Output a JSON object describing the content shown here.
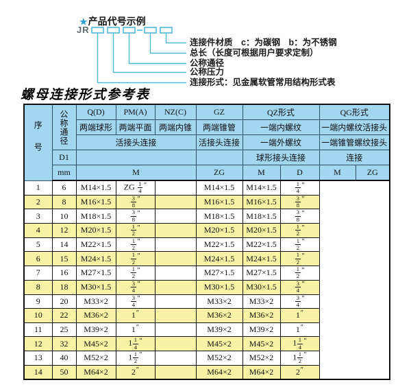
{
  "colors": {
    "accent_cyan": "#4cb9da",
    "star_blue": "#2aa3d8",
    "header_blue": "#a3d7f1",
    "row_yellow": "#f8f3a4"
  },
  "diagram": {
    "star": "★",
    "heading": "产品代号示例",
    "code_prefix": "JR",
    "labels": [
      "连接件材质　c：为碳钢　b：为不锈钢",
      "总长（长度可根据用户要求定制）",
      "公称通径",
      "公称压力",
      "连接形式：见金属软管常用结构形式表"
    ]
  },
  "table": {
    "title": "螺母连接形式参考表",
    "header": {
      "seq": "序号",
      "dn": "公称通径",
      "d1": "D1",
      "mm": "mm",
      "col_q": "Q(D)",
      "col_pm": "PM(A)",
      "col_nz": "NZ(C)",
      "col_gz": "GZ",
      "col_qz": "QZ形式",
      "col_qg": "QG形式",
      "q_desc": "两端球形",
      "pm_desc": "两端平面",
      "nz_desc": "两端内锥",
      "gz_desc": "两端锥管",
      "qz_desc1": "一端内螺纹",
      "qg_desc1": "一端内螺纹活接头",
      "left_conn": "活接头连接",
      "gz_conn": "活接头连接",
      "qz_desc2": "一端外螺纹",
      "qg_desc2": "一端锥管螺纹接头",
      "qz_conn": "球形接头连接",
      "qg_conn": "连接",
      "m1": "M",
      "zg1": "ZG",
      "m2": "M",
      "d2": "D",
      "m3": "M",
      "zg3": "ZG"
    },
    "rows": [
      {
        "no": "1",
        "dn": "6",
        "m": "M14×1.5",
        "gz": {
          "pre": "ZG ",
          "frac": "1/4",
          "unit": "″"
        },
        "qzm": "",
        "qzd": "M14×1.5",
        "qgm": "M14×1.5",
        "qgzg": {
          "frac": "1/4",
          "unit": "″"
        }
      },
      {
        "no": "2",
        "dn": "8",
        "m": "M16×1.5",
        "gz": {
          "frac": "3/8",
          "unit": "″"
        },
        "qzm": "",
        "qzd": "M16×1.5",
        "qgm": "M16×1.5",
        "qgzg": {
          "frac": "3/8",
          "unit": "″"
        }
      },
      {
        "no": "3",
        "dn": "10",
        "m": "M18×1.5",
        "gz": {
          "frac": "3/8",
          "unit": "″"
        },
        "qzm": "",
        "qzd": "M18×1.5",
        "qgm": "M18×1.5",
        "qgzg": {
          "frac": "3/8",
          "unit": "″"
        }
      },
      {
        "no": "4",
        "dn": "12",
        "m": "M20×1.5",
        "gz": {
          "frac": "1/2",
          "unit": "″"
        },
        "qzm": "",
        "qzd": "M20×1.5",
        "qgm": "M20×1.5",
        "qgzg": {
          "frac": "1/2",
          "unit": "″"
        }
      },
      {
        "no": "5",
        "dn": "14",
        "m": "M22×1.5",
        "gz": {
          "frac": "1/2",
          "unit": "″"
        },
        "qzm": "",
        "qzd": "M22×1.5",
        "qgm": "M22×1.5",
        "qgzg": {
          "frac": "1/2",
          "unit": "″"
        }
      },
      {
        "no": "6",
        "dn": "15",
        "m": "M24×1.5",
        "gz": {
          "frac": "1/2",
          "unit": "″"
        },
        "qzm": "",
        "qzd": "M24×1.5",
        "qgm": "M24×1.5",
        "qgzg": {
          "frac": "1/2",
          "unit": "″"
        }
      },
      {
        "no": "7",
        "dn": "16",
        "m": "M27×1.5",
        "gz": {
          "frac": "1/2",
          "unit": "″"
        },
        "qzm": "",
        "qzd": "M27×1.5",
        "qgm": "M27×1.5",
        "qgzg": {
          "frac": "1/2",
          "unit": "″"
        }
      },
      {
        "no": "8",
        "dn": "18",
        "m": "M30×1.5",
        "gz": {
          "frac": "3/4",
          "unit": "″"
        },
        "qzm": "",
        "qzd": "M30×1.5",
        "qgm": "M30×1.5",
        "qgzg": {
          "frac": "3/4",
          "unit": "″"
        }
      },
      {
        "no": "9",
        "dn": "20",
        "m": "M33×2",
        "gz": {
          "frac": "3/4",
          "unit": "″"
        },
        "qzm": "",
        "qzd": "M33×2",
        "qgm": "M33×2",
        "qgzg": {
          "frac": "3/4",
          "unit": "″"
        }
      },
      {
        "no": "10",
        "dn": "22",
        "m": "M36×2",
        "gz": {
          "pre": "1",
          "unit": "″"
        },
        "qzm": "",
        "qzd": "M36×2",
        "qgm": "M36×2",
        "qgzg": {
          "pre": "1",
          "unit": "″"
        }
      },
      {
        "no": "11",
        "dn": "25",
        "m": "M39×2",
        "gz": {
          "pre": "1",
          "unit": "″"
        },
        "qzm": "",
        "qzd": "M39×2",
        "qgm": "M39×2",
        "qgzg": {
          "pre": "1",
          "unit": "″"
        }
      },
      {
        "no": "12",
        "dn": "32",
        "m": "M45×2",
        "gz": {
          "pre": "1",
          "frac": "1/4",
          "unit": "″"
        },
        "qzm": "",
        "qzd": "M45×2",
        "qgm": "M45×2",
        "qgzg": {
          "pre": "1",
          "frac": "1/4",
          "unit": "″"
        }
      },
      {
        "no": "13",
        "dn": "40",
        "m": "M52×2",
        "gz": {
          "pre": "1",
          "frac": "1/2",
          "unit": "″"
        },
        "qzm": "",
        "qzd": "M52×2",
        "qgm": "M52×2",
        "qgzg": {
          "pre": "1",
          "frac": "1/2",
          "unit": "″"
        }
      },
      {
        "no": "14",
        "dn": "50",
        "m": "M64×2",
        "gz": {
          "pre": "2",
          "unit": "″"
        },
        "qzm": "",
        "qzd": "M64×2",
        "qgm": "M64×2",
        "qgzg": {
          "pre": "2",
          "unit": "″"
        }
      }
    ]
  }
}
